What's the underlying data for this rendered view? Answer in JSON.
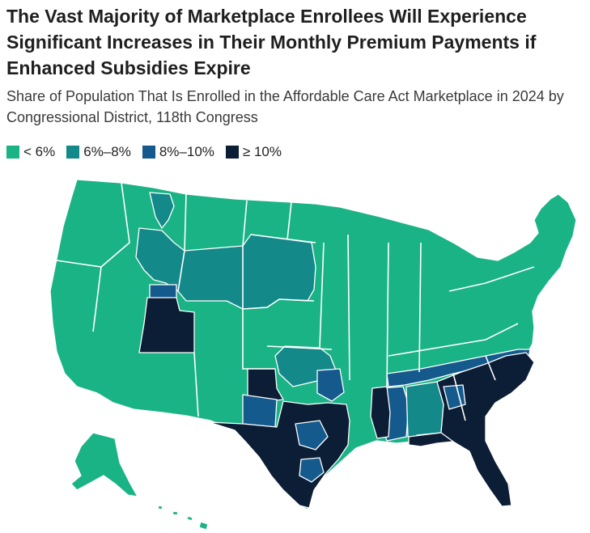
{
  "title": "The Vast Majority of Marketplace Enrollees Will Experience Significant Increases in Their Monthly Premium Payments if Enhanced Subsidies Expire",
  "subtitle": "Share of Population That Is Enrolled in the Affordable Care Act Marketplace in 2024 by Congressional District, 118th Congress",
  "legend": [
    {
      "label": "< 6%",
      "color": "#1ab385"
    },
    {
      "label": "6%–8%",
      "color": "#14898a"
    },
    {
      "label": "8%–10%",
      "color": "#155a8c"
    },
    {
      "label": "≥ 10%",
      "color": "#0c1d36"
    }
  ],
  "colors": {
    "border": "#ffffff",
    "background": "#ffffff"
  }
}
